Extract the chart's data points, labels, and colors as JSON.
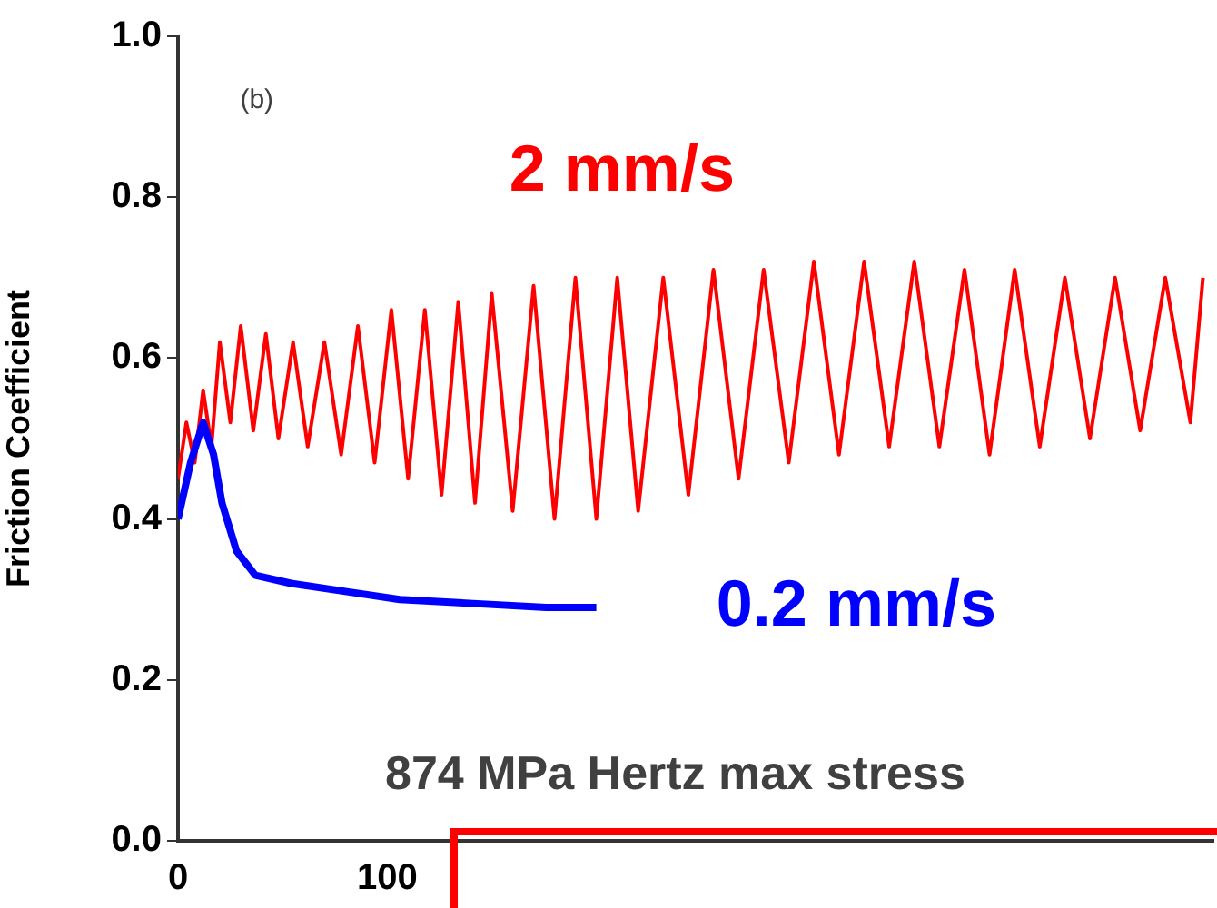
{
  "chart_data": {
    "type": "line",
    "ylabel": "Friction Coefficient",
    "annotations": [
      "(b)",
      "874 MPa Hertz max stress"
    ],
    "xlim": [
      0,
      495
    ],
    "xticks": [
      0,
      100
    ],
    "ylim": [
      0,
      1
    ],
    "yticks": [
      {
        "value": 0,
        "label": "0.0"
      },
      0.2,
      0.4,
      0.6,
      0.8,
      {
        "value": 1,
        "label": "1.0"
      }
    ],
    "grid": false,
    "legend": false,
    "series": [
      {
        "name": "2 mm/s",
        "color": "#ff0000",
        "x": [
          0,
          4,
          8,
          12,
          16,
          20,
          25,
          30,
          36,
          42,
          48,
          55,
          62,
          70,
          78,
          86,
          94,
          102,
          110,
          118,
          126,
          134,
          142,
          150,
          160,
          170,
          180,
          190,
          200,
          210,
          220,
          232,
          244,
          256,
          268,
          280,
          292,
          304,
          316,
          328,
          340,
          352,
          364,
          376,
          388,
          400,
          412,
          424,
          436,
          448,
          460,
          472,
          484,
          490
        ],
        "values": [
          0.45,
          0.52,
          0.47,
          0.56,
          0.49,
          0.62,
          0.52,
          0.64,
          0.51,
          0.63,
          0.5,
          0.62,
          0.49,
          0.62,
          0.48,
          0.64,
          0.47,
          0.66,
          0.45,
          0.66,
          0.43,
          0.67,
          0.42,
          0.68,
          0.41,
          0.69,
          0.4,
          0.7,
          0.4,
          0.7,
          0.41,
          0.7,
          0.43,
          0.71,
          0.45,
          0.71,
          0.47,
          0.72,
          0.48,
          0.72,
          0.49,
          0.72,
          0.49,
          0.71,
          0.48,
          0.71,
          0.49,
          0.7,
          0.5,
          0.7,
          0.51,
          0.7,
          0.52,
          0.7
        ]
      },
      {
        "name": "0.2 mm/s",
        "color": "#0000ff",
        "x": [
          0,
          6,
          12,
          17,
          21,
          28,
          37,
          54,
          80,
          106,
          141,
          176,
          200
        ],
        "values": [
          0.4,
          0.47,
          0.52,
          0.48,
          0.42,
          0.36,
          0.33,
          0.32,
          0.31,
          0.3,
          0.295,
          0.29,
          0.29
        ]
      }
    ]
  }
}
